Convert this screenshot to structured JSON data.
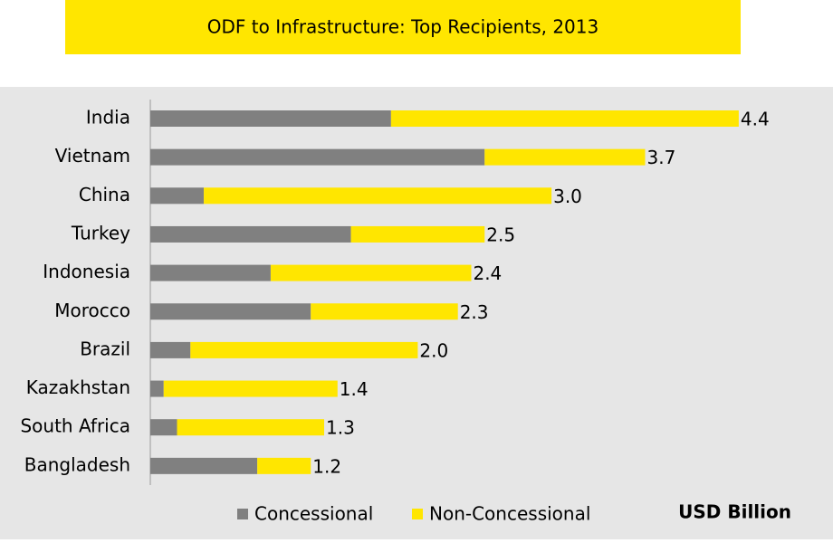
{
  "chart_data": {
    "type": "stacked-barh",
    "title": "ODF to Infrastructure: Top Recipients, 2013",
    "categories": [
      "India",
      "Vietnam",
      "China",
      "Turkey",
      "Indonesia",
      "Morocco",
      "Brazil",
      "Kazakhstan",
      "South Africa",
      "Bangladesh"
    ],
    "series": [
      {
        "name": "Concessional",
        "color": "#808080",
        "values": [
          1.8,
          2.5,
          0.4,
          1.5,
          0.9,
          1.2,
          0.3,
          0.1,
          0.2,
          0.8
        ]
      },
      {
        "name": "Non-Concessional",
        "color": "#ffe600",
        "values": [
          2.6,
          1.2,
          2.6,
          1.0,
          1.5,
          1.1,
          1.7,
          1.3,
          1.1,
          0.4
        ]
      }
    ],
    "total_labels": [
      "4.4",
      "3.7",
      "3.0",
      "2.5",
      "2.4",
      "2.3",
      "2.0",
      "1.4",
      "1.3",
      "1.2"
    ],
    "unit_label": "USD Billion",
    "xlim": [
      0,
      5
    ]
  }
}
